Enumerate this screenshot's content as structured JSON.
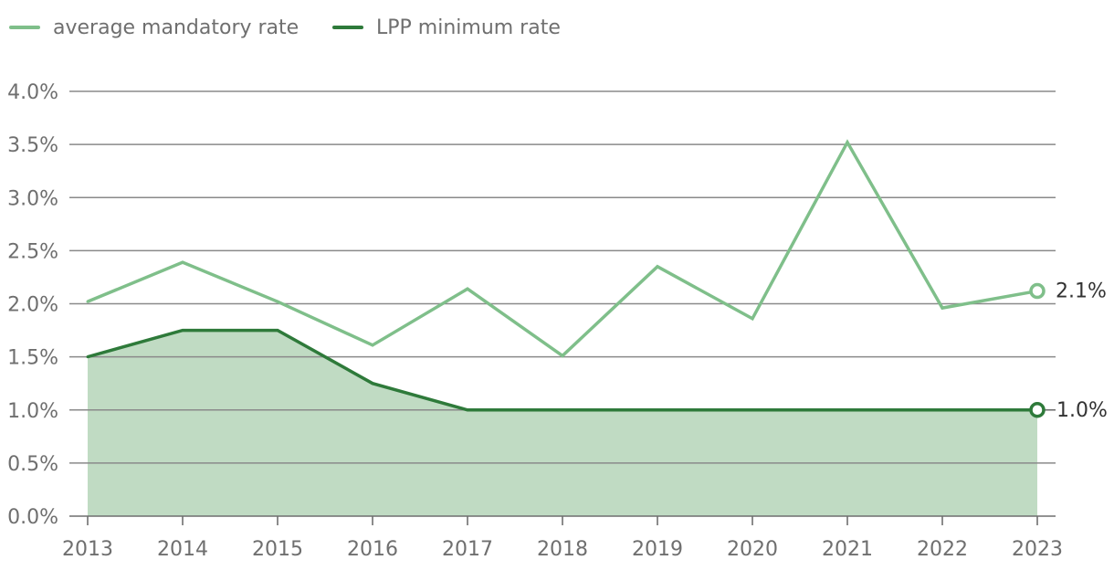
{
  "chart_data": {
    "type": "line",
    "categories": [
      "2013",
      "2014",
      "2015",
      "2016",
      "2017",
      "2018",
      "2019",
      "2020",
      "2021",
      "2022",
      "2023"
    ],
    "series": [
      {
        "name": "average mandatory rate",
        "color": "#7fbf8a",
        "values": [
          2.02,
          2.39,
          2.02,
          1.61,
          2.14,
          1.51,
          2.35,
          1.86,
          3.52,
          1.96,
          2.12
        ],
        "end_label": "2.1%",
        "area": false
      },
      {
        "name": "LPP minimum rate",
        "color": "#2e7a3a",
        "fill_color": "#c0dbc3",
        "values": [
          1.5,
          1.75,
          1.75,
          1.25,
          1.0,
          1.0,
          1.0,
          1.0,
          1.0,
          1.0,
          1.0
        ],
        "end_label": "1.0%",
        "area": true
      }
    ],
    "y_ticks": [
      "0.0%",
      "0.5%",
      "1.0%",
      "1.5%",
      "2.0%",
      "2.5%",
      "3.0%",
      "3.5%",
      "4.0%"
    ],
    "y_tick_values": [
      0,
      0.5,
      1.0,
      1.5,
      2.0,
      2.5,
      3.0,
      3.5,
      4.0
    ],
    "ylim": [
      0,
      4.0
    ],
    "title": "",
    "xlabel": "",
    "ylabel": "",
    "grid": true,
    "legend_position": "top-left"
  }
}
